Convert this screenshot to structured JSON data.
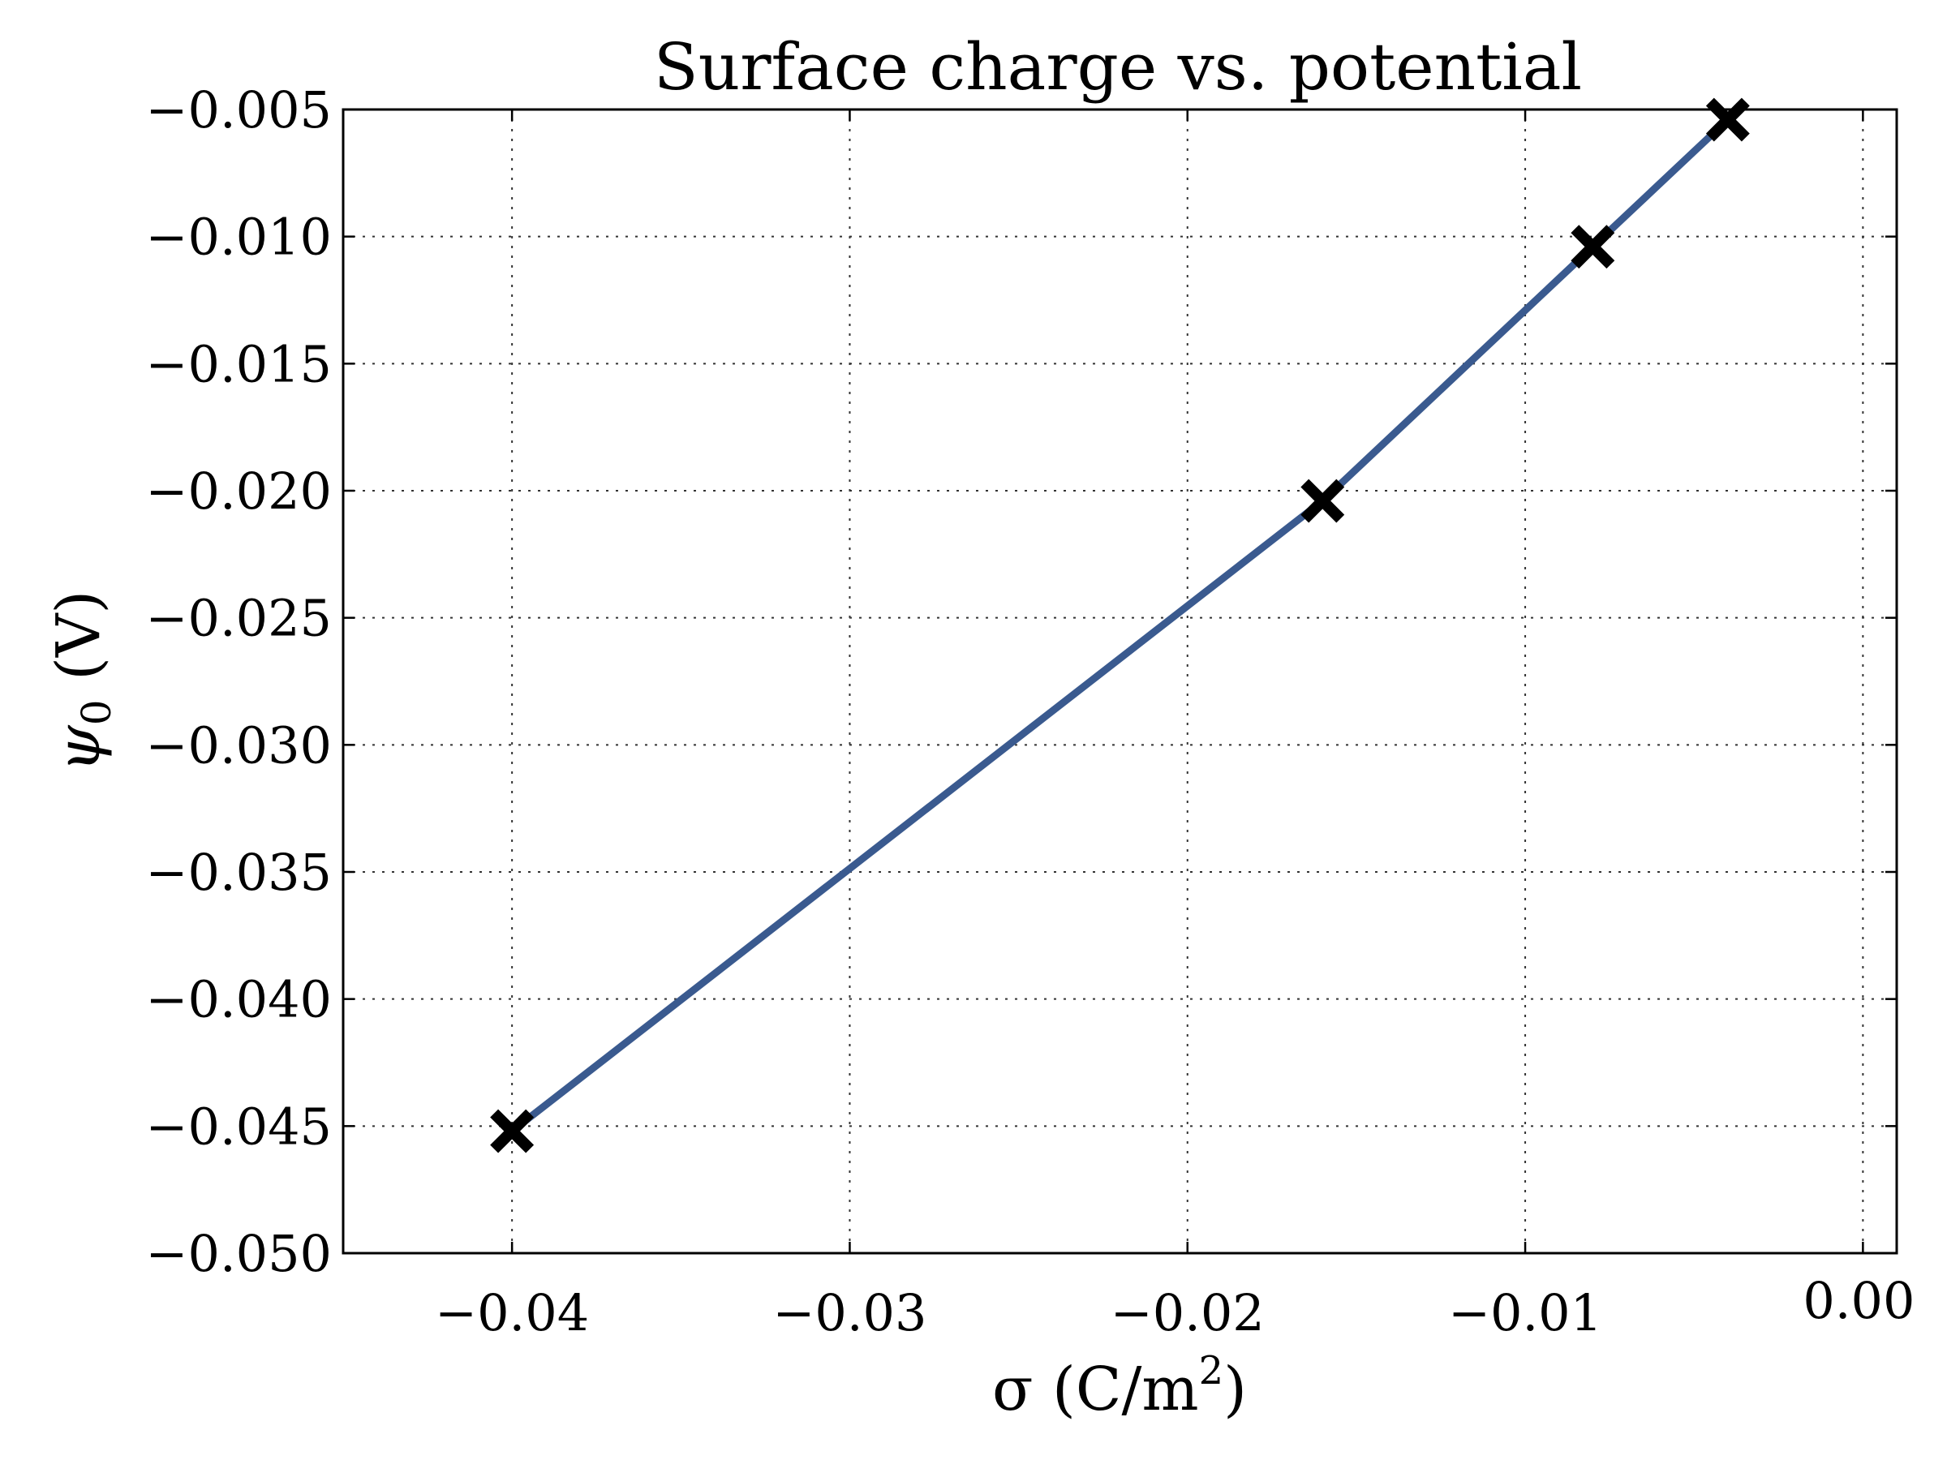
{
  "chart_data": {
    "type": "line",
    "title": "Surface charge vs. potential",
    "xlabel": {
      "main": "σ (C/m",
      "sup": "2",
      "tail": ")"
    },
    "ylabel": {
      "main": "ψ",
      "sub": "0",
      "tail": " (V)"
    },
    "xlim": [
      -0.045,
      0.001
    ],
    "ylim": [
      -0.05,
      -0.005
    ],
    "xticks": [
      -0.04,
      -0.03,
      -0.02,
      -0.01,
      0.0
    ],
    "xtick_labels": [
      "−0.04",
      "−0.03",
      "−0.02",
      "−0.01",
      "0.00"
    ],
    "yticks": [
      -0.05,
      -0.045,
      -0.04,
      -0.035,
      -0.03,
      -0.025,
      -0.02,
      -0.015,
      -0.01,
      -0.005
    ],
    "ytick_labels": [
      "−0.050",
      "−0.045",
      "−0.040",
      "−0.035",
      "−0.030",
      "−0.025",
      "−0.020",
      "−0.015",
      "−0.010",
      "−0.005"
    ],
    "grid": true,
    "series": [
      {
        "line_color": "#3a5a8f",
        "marker": "x",
        "marker_color": "#000000",
        "x": [
          -0.04,
          -0.016,
          -0.008,
          -0.004
        ],
        "y": [
          -0.0452,
          -0.0204,
          -0.0104,
          -0.0054
        ]
      }
    ]
  }
}
